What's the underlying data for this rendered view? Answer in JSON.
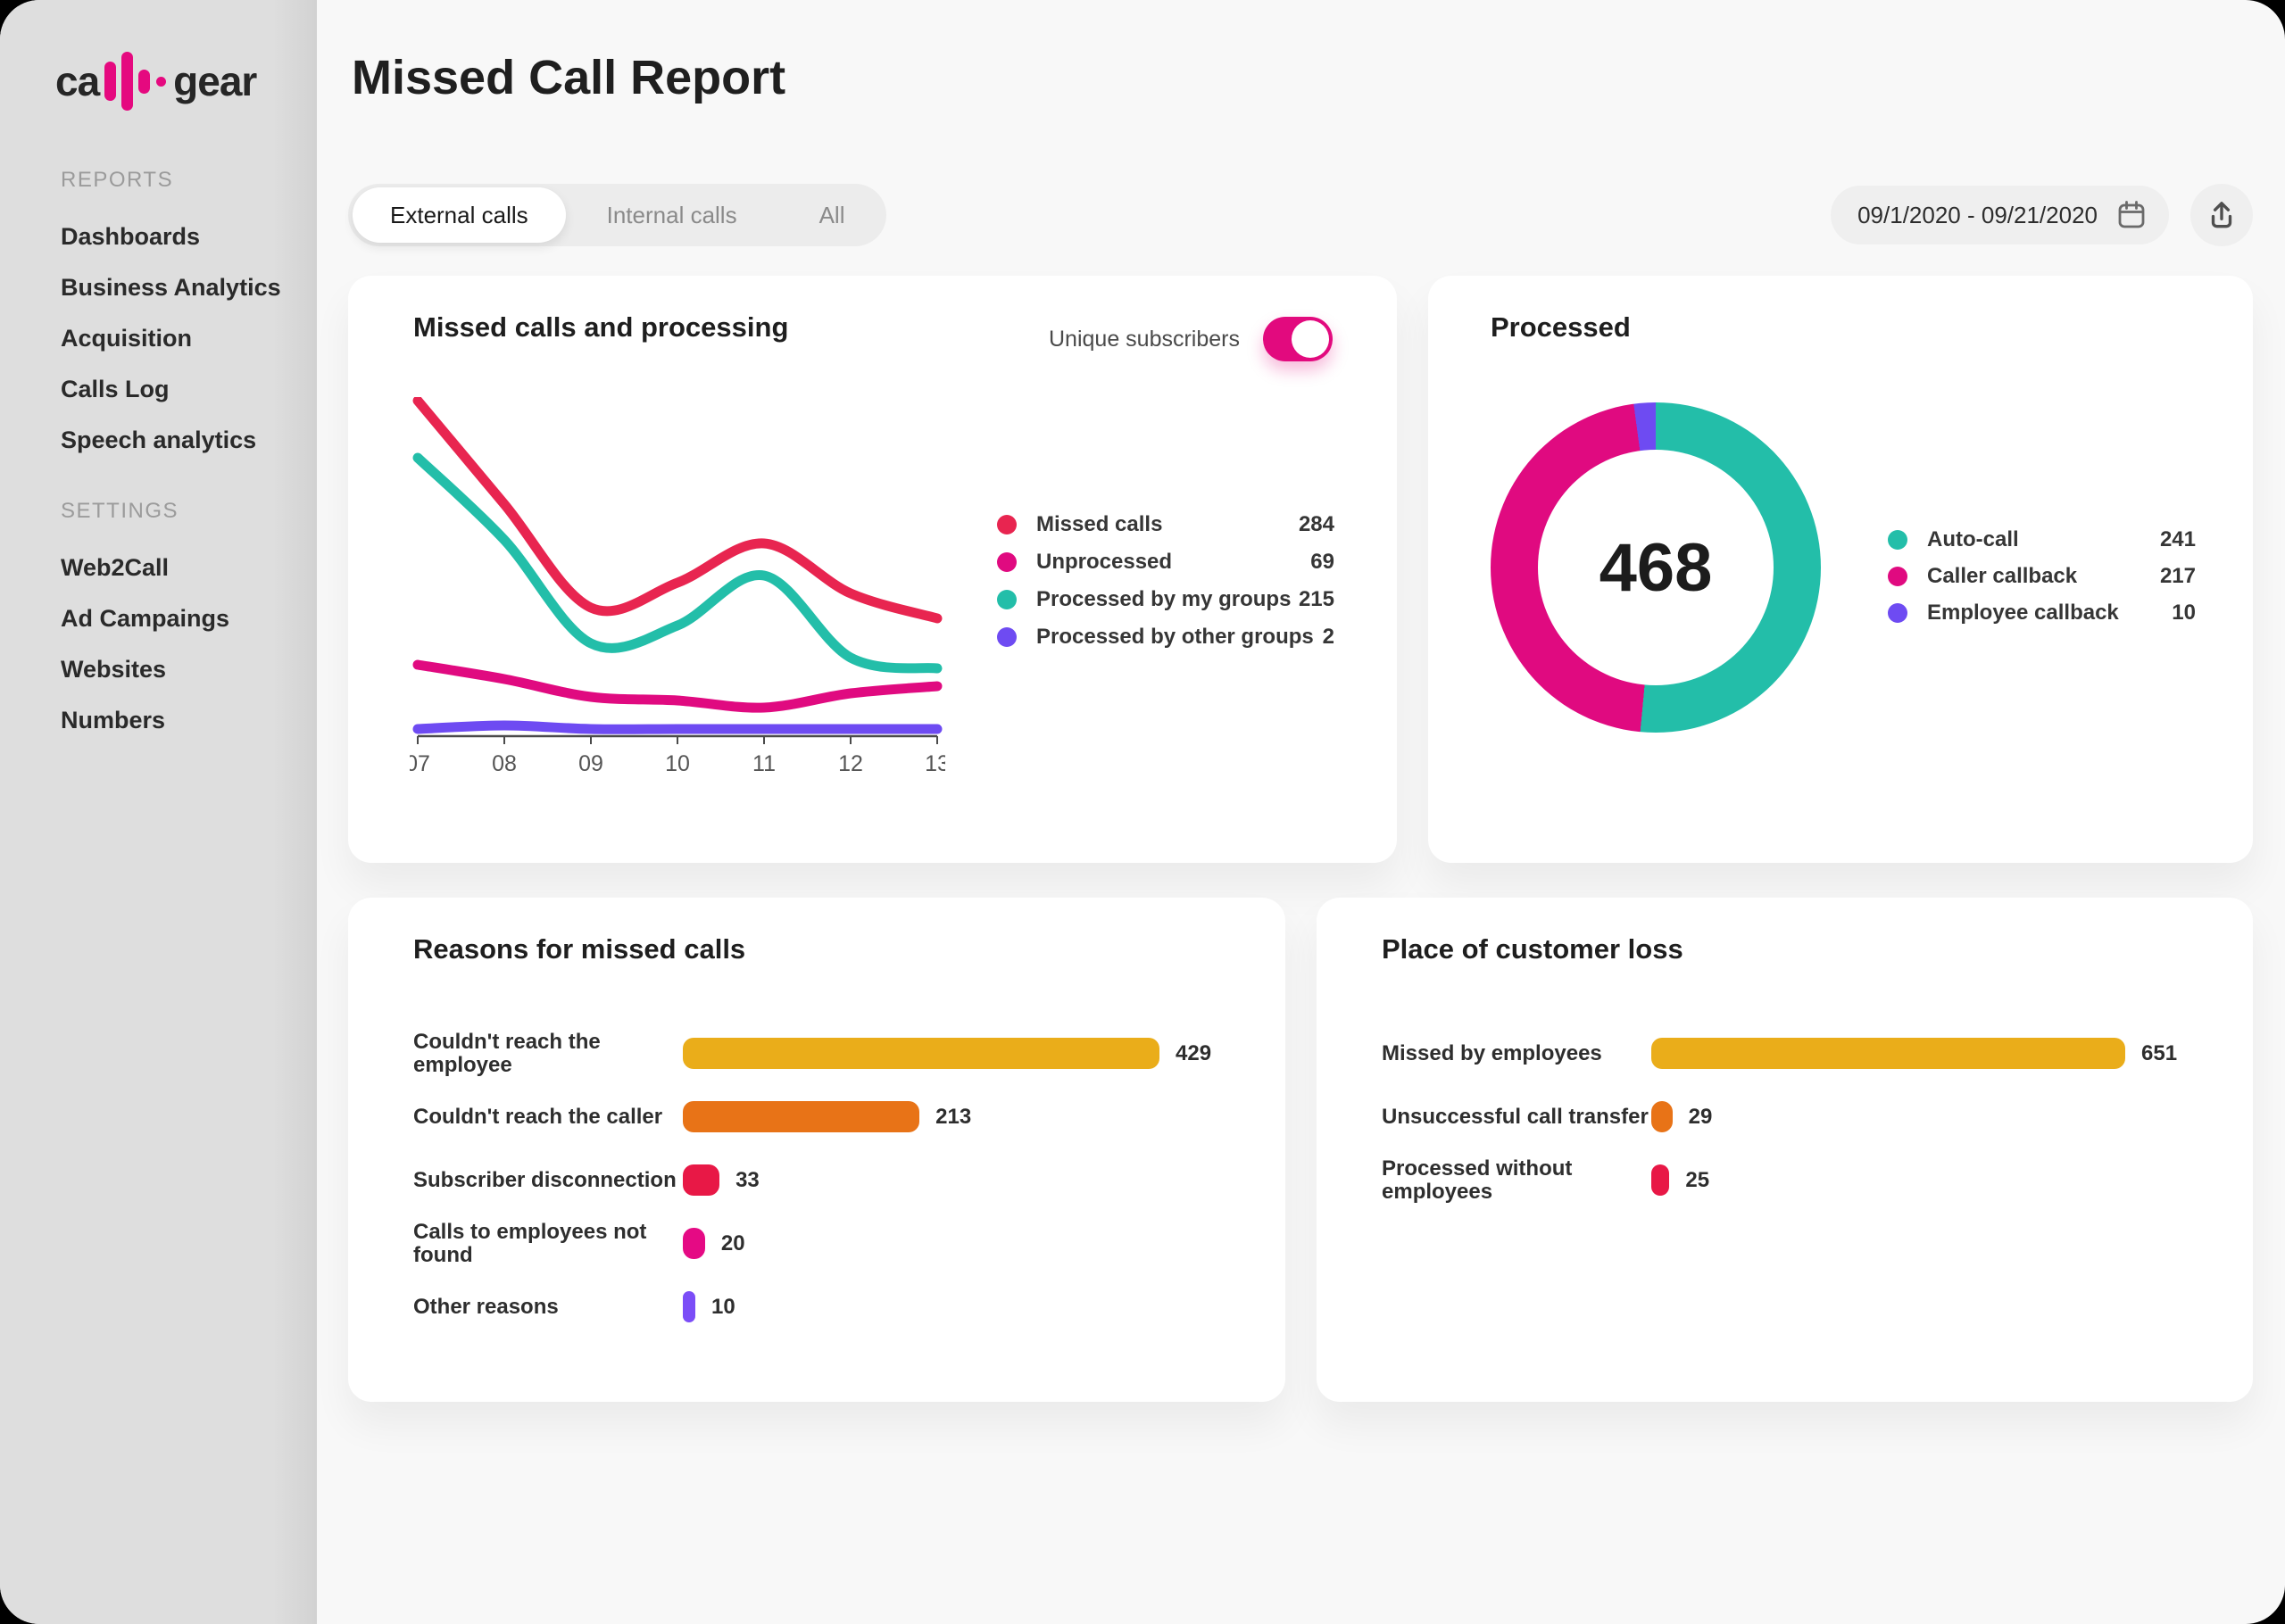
{
  "brand": {
    "left": "ca",
    "right": "gear",
    "accent": "#E5097F"
  },
  "sidebar": {
    "sections": [
      {
        "title": "REPORTS",
        "items": [
          "Dashboards",
          "Business Analytics",
          "Acquisition",
          "Calls Log",
          "Speech analytics"
        ]
      },
      {
        "title": "SETTINGS",
        "items": [
          "Web2Call",
          "Ad Campaings",
          "Websites",
          "Numbers"
        ]
      }
    ]
  },
  "header": {
    "title": "Missed Call Report",
    "tabs": [
      {
        "label": "External calls",
        "active": true
      },
      {
        "label": "Internal calls",
        "active": false
      },
      {
        "label": "All",
        "active": false
      }
    ],
    "date_range": "09/1/2020 - 09/21/2020"
  },
  "toggle": {
    "label": "Unique subscribers",
    "on": true
  },
  "chart_data": [
    {
      "id": "missed_calls_processing",
      "type": "line",
      "title": "Missed calls and processing",
      "x": [
        "07",
        "08",
        "09",
        "10",
        "11",
        "12",
        "13"
      ],
      "ylim": [
        0,
        95
      ],
      "grid": false,
      "legend_position": "right",
      "series": [
        {
          "name": "Missed calls",
          "color": "#E82550",
          "total": 284,
          "values": [
            94,
            65,
            36,
            43,
            54,
            40,
            33
          ]
        },
        {
          "name": "Unprocessed",
          "color": "#E00A80",
          "total": 69,
          "values": [
            20,
            16,
            11,
            10,
            8,
            12,
            14
          ]
        },
        {
          "name": "Processed by my groups",
          "color": "#23BEA9",
          "total": 215,
          "values": [
            78,
            55,
            26,
            31,
            45,
            22,
            19
          ]
        },
        {
          "name": "Processed by other groups",
          "color": "#6E4BF2",
          "total": 2,
          "values": [
            2,
            3,
            2,
            2,
            2,
            2,
            2
          ]
        }
      ]
    },
    {
      "id": "processed",
      "type": "pie",
      "title": "Processed",
      "center_total": 468,
      "slices": [
        {
          "name": "Auto-call",
          "value": 241,
          "color": "#23BEA9"
        },
        {
          "name": "Caller callback",
          "value": 217,
          "color": "#E00A80"
        },
        {
          "name": "Employee callback",
          "value": 10,
          "color": "#6E4BF2"
        }
      ]
    },
    {
      "id": "reasons",
      "type": "bar",
      "orientation": "horizontal",
      "title": "Reasons for missed calls",
      "categories": [
        "Couldn't reach the employee",
        "Couldn't reach the caller",
        "Subscriber disconnection",
        "Calls to employees not found",
        "Other reasons"
      ],
      "values": [
        429,
        213,
        33,
        20,
        10
      ],
      "colors": [
        "#EAAD1A",
        "#E87317",
        "#E81846",
        "#E50A84",
        "#7B4DF7"
      ],
      "xmax": 429
    },
    {
      "id": "place_loss",
      "type": "bar",
      "orientation": "horizontal",
      "title": "Place of customer loss",
      "categories": [
        "Missed by employees",
        "Unsuccessful call transfer",
        "Processed without employees"
      ],
      "values": [
        651,
        29,
        25
      ],
      "colors": [
        "#EAAD1A",
        "#E87317",
        "#E81846"
      ],
      "xmax": 651
    }
  ]
}
